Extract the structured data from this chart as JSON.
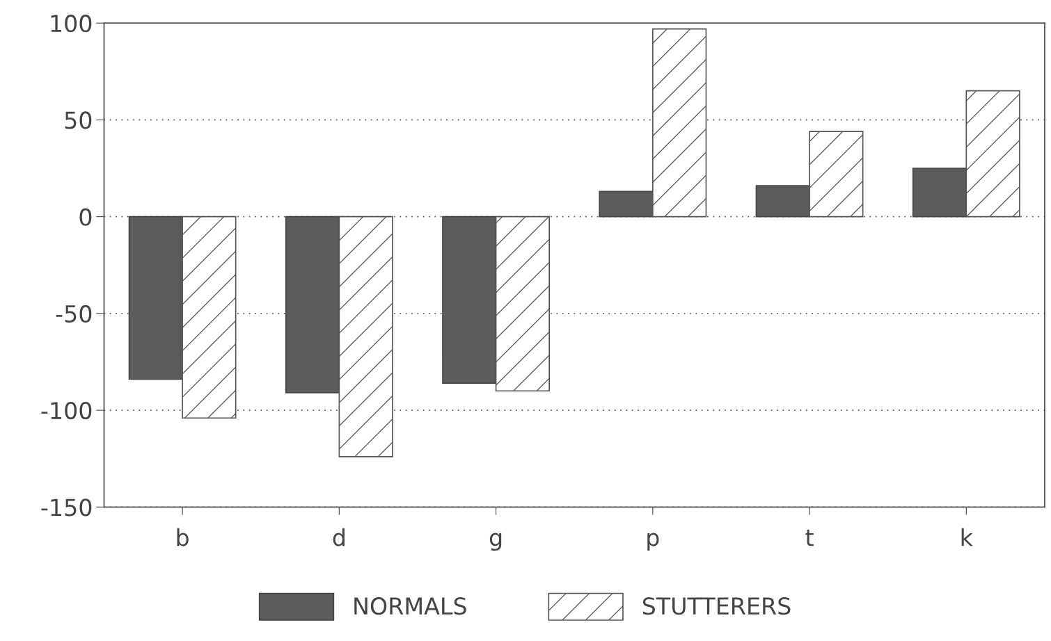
{
  "chart_data": {
    "type": "bar",
    "categories": [
      "b",
      "d",
      "g",
      "p",
      "t",
      "k"
    ],
    "series": [
      {
        "name": "NORMALS",
        "color": "#5c5c5c",
        "values": [
          -84,
          -91,
          -86,
          13,
          16,
          25
        ]
      },
      {
        "name": "STUTTERERS",
        "color": "#555555",
        "values": [
          -104,
          -124,
          -90,
          97,
          44,
          65
        ]
      }
    ],
    "ylim": [
      -150,
      100
    ],
    "yticks": [
      -150,
      -100,
      -50,
      0,
      50,
      100
    ],
    "grid": "y",
    "legend": "bottom"
  }
}
